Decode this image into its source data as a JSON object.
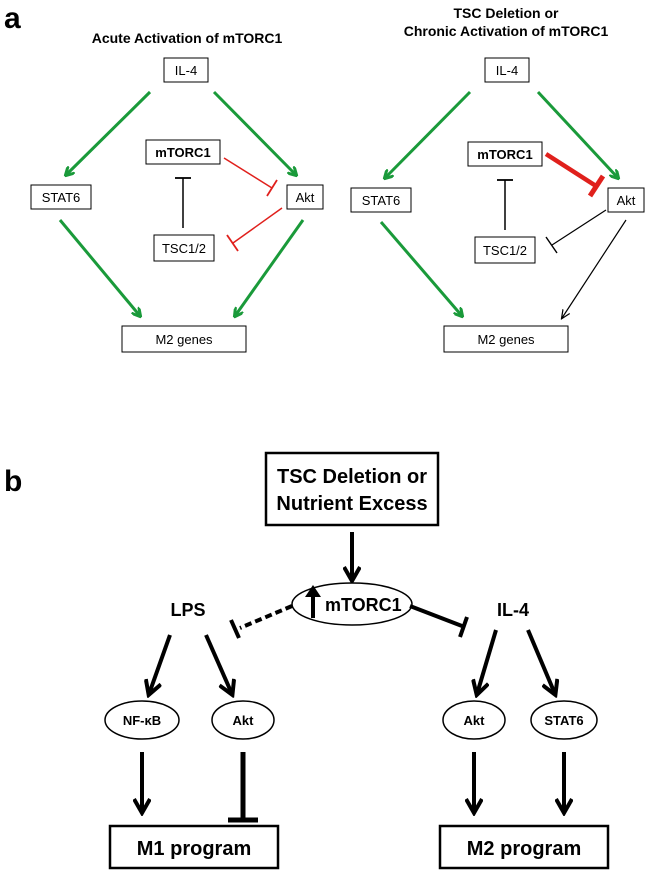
{
  "panel_a": {
    "label": "a",
    "left": {
      "title": "Acute Activation of mTORC1",
      "il4": "IL-4",
      "stat6": "STAT6",
      "mtorc1": "mTORC1",
      "akt": "Akt",
      "tsc": "TSC1/2",
      "m2": "M2 genes"
    },
    "right": {
      "title_line1": "TSC Deletion or",
      "title_line2": "Chronic Activation of mTORC1",
      "il4": "IL-4",
      "stat6": "STAT6",
      "mtorc1": "mTORC1",
      "akt": "Akt",
      "tsc": "TSC1/2",
      "m2": "M2 genes"
    }
  },
  "panel_b": {
    "label": "b",
    "top_line1": "TSC Deletion or",
    "top_line2": "Nutrient Excess",
    "mtorc1": "mTORC1",
    "lps": "LPS",
    "il4": "IL-4",
    "nfkb": "NF-κB",
    "akt_left": "Akt",
    "akt_right": "Akt",
    "stat6": "STAT6",
    "m1": "M1 program",
    "m2": "M2 program"
  },
  "colors": {
    "activation": "#1a9a3a",
    "inhibition": "#e0201c",
    "black": "#000000"
  }
}
